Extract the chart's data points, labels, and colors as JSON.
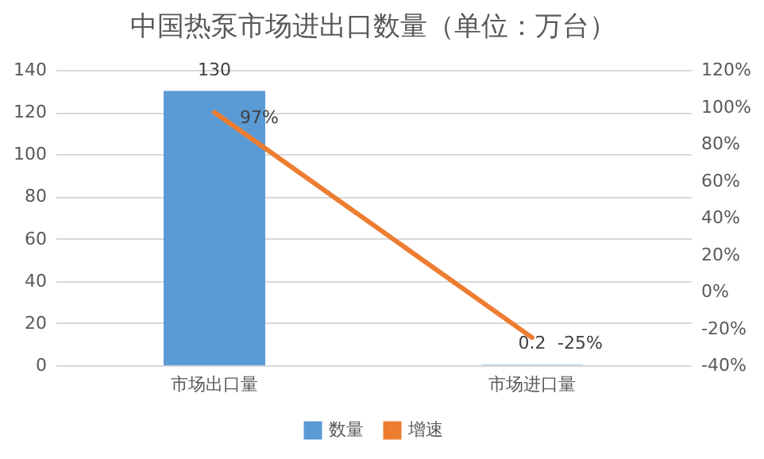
{
  "chart_data": {
    "type": "bar",
    "title": "中国热泵市场进出口数量（单位：万台）",
    "categories": [
      "市场出口量",
      "市场进口量"
    ],
    "series": [
      {
        "name": "数量",
        "color": "#5b9bd5",
        "values": [
          130,
          0.2
        ],
        "value_labels": [
          "130",
          "0.2"
        ]
      },
      {
        "name": "增速",
        "type": "line",
        "axis": "y2",
        "color": "#ed7d31",
        "values": [
          97,
          -25
        ],
        "value_labels": [
          "97%",
          "-25%"
        ]
      }
    ],
    "ylim": [
      0,
      140
    ],
    "yticks": [
      0,
      20,
      40,
      60,
      80,
      100,
      120,
      140
    ],
    "y2lim": [
      -40,
      120
    ],
    "y2ticks": [
      {
        "value": -40,
        "label": "-40%"
      },
      {
        "value": -20,
        "label": "-20%"
      },
      {
        "value": 0,
        "label": "0%"
      },
      {
        "value": 20,
        "label": "20%"
      },
      {
        "value": 40,
        "label": "40%"
      },
      {
        "value": 60,
        "label": "60%"
      },
      {
        "value": 80,
        "label": "80%"
      },
      {
        "value": 100,
        "label": "100%"
      },
      {
        "value": 120,
        "label": "120%"
      }
    ],
    "grid": "y",
    "legend": "bottom",
    "marker": "none",
    "line_style": "solid"
  }
}
